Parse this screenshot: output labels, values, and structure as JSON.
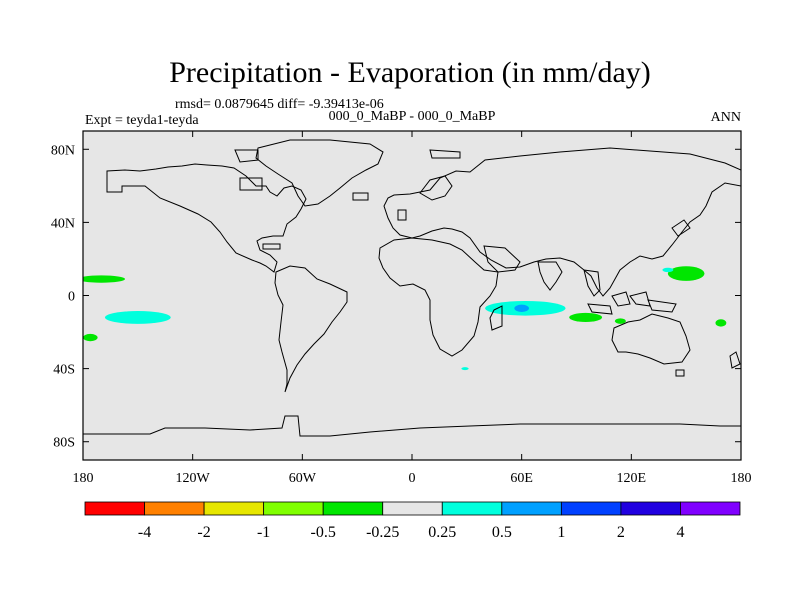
{
  "chart_data": {
    "type": "heatmap",
    "title": "Precipitation - Evaporation (in mm/day)",
    "stats_line": "rmsd= 0.0879645 diff= -9.39413e-06",
    "experiment_label": "Expt = teyda1-teyda",
    "case_label": "000_0_MaBP - 000_0_MaBP",
    "season": "ANN",
    "xlim": [
      -180,
      180
    ],
    "ylim": [
      -90,
      90
    ],
    "x_ticks": [
      {
        "value": -180,
        "label": "180"
      },
      {
        "value": -120,
        "label": "120W"
      },
      {
        "value": -60,
        "label": "60W"
      },
      {
        "value": 0,
        "label": "0"
      },
      {
        "value": 60,
        "label": "60E"
      },
      {
        "value": 120,
        "label": "120E"
      },
      {
        "value": 180,
        "label": "180"
      }
    ],
    "y_ticks": [
      {
        "value": 80,
        "label": "80N"
      },
      {
        "value": 40,
        "label": "40N"
      },
      {
        "value": 0,
        "label": "0"
      },
      {
        "value": -40,
        "label": "40S"
      },
      {
        "value": -80,
        "label": "80S"
      }
    ],
    "colorbar": {
      "colors": [
        "#ff0000",
        "#ff8000",
        "#e6e600",
        "#80ff00",
        "#00e600",
        "#e6e6e6",
        "#00ffdd",
        "#00a0ff",
        "#0040ff",
        "#2000e0",
        "#8000ff"
      ],
      "boundary_labels": [
        "-4",
        "-2",
        "-1",
        "-0.5",
        "-0.25",
        "0.25",
        "0.5",
        "1",
        "2",
        "4"
      ]
    },
    "anomaly_patches": [
      {
        "name": "tropical-pacific-north",
        "lon": -170,
        "lat": 9,
        "lon_radius": 13,
        "lat_radius": 2,
        "value": -0.3
      },
      {
        "name": "tropical-pacific-south",
        "lon": -150,
        "lat": -12,
        "lon_radius": 18,
        "lat_radius": 3.5,
        "value": 0.3
      },
      {
        "name": "south-pacific-west",
        "lon": -176,
        "lat": -23,
        "lon_radius": 4,
        "lat_radius": 2,
        "value": -0.3
      },
      {
        "name": "indian-ocean-outer",
        "lon": 62,
        "lat": -7,
        "lon_radius": 22,
        "lat_radius": 4,
        "value": 0.3
      },
      {
        "name": "indian-ocean-core",
        "lon": 60,
        "lat": -7,
        "lon_radius": 4,
        "lat_radius": 2,
        "value": 0.7
      },
      {
        "name": "maritime-continent",
        "lon": 95,
        "lat": -12,
        "lon_radius": 9,
        "lat_radius": 2.5,
        "value": -0.3
      },
      {
        "name": "east-indonesia",
        "lon": 114,
        "lat": -14,
        "lon_radius": 3,
        "lat_radius": 1.5,
        "value": -0.3
      },
      {
        "name": "west-pacific-north",
        "lon": 150,
        "lat": 12,
        "lon_radius": 10,
        "lat_radius": 4,
        "value": -0.3
      },
      {
        "name": "west-pacific-small",
        "lon": 140,
        "lat": 14,
        "lon_radius": 3,
        "lat_radius": 1.2,
        "value": 0.3
      },
      {
        "name": "south-pacific-east",
        "lon": 169,
        "lat": -15,
        "lon_radius": 3,
        "lat_radius": 2,
        "value": -0.3
      },
      {
        "name": "southern-ocean-south-africa",
        "lon": 29,
        "lat": -40,
        "lon_radius": 2,
        "lat_radius": 0.8,
        "value": 0.3
      }
    ]
  }
}
